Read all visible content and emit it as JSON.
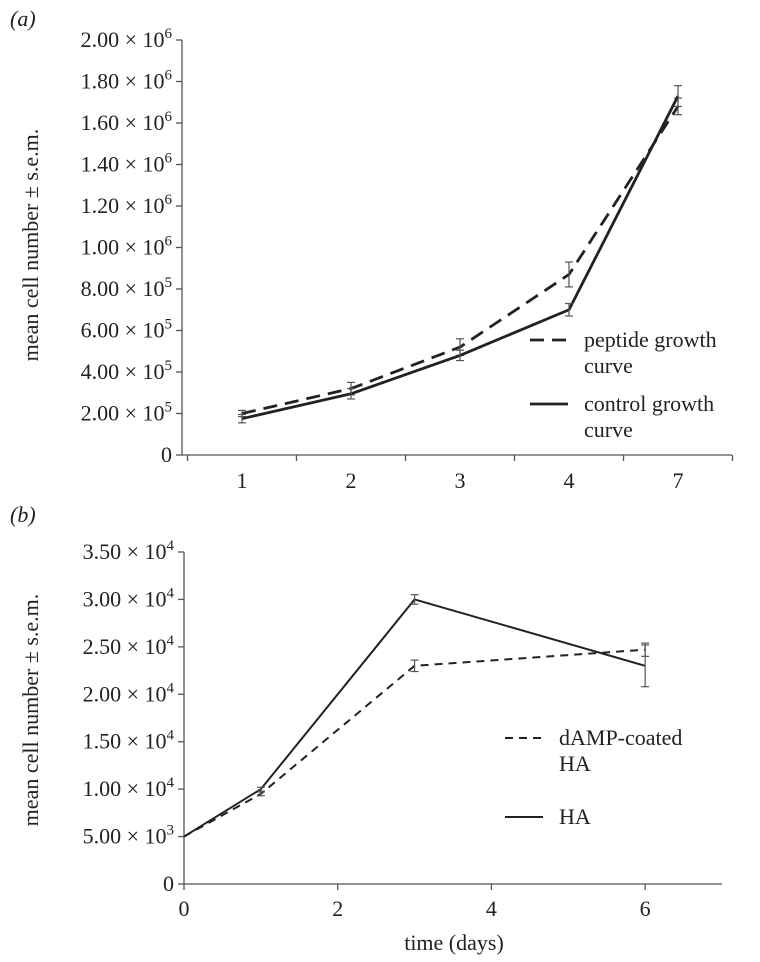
{
  "chart_data": [
    {
      "panel_label": "(a)",
      "type": "line",
      "ylabel": "mean cell number ± s.e.m.",
      "xlabel": "",
      "categories": [
        "1",
        "2",
        "3",
        "4",
        "7"
      ],
      "x_axis_type": "categorical",
      "ylim": [
        0,
        2000000
      ],
      "y_ticks": [
        0,
        200000,
        400000,
        600000,
        800000,
        1000000,
        1200000,
        1400000,
        1600000,
        1800000,
        2000000
      ],
      "y_tick_labels": [
        {
          "mantissa": "0",
          "exp": ""
        },
        {
          "mantissa": "2.00 × 10",
          "exp": "5"
        },
        {
          "mantissa": "4.00 × 10",
          "exp": "5"
        },
        {
          "mantissa": "6.00 × 10",
          "exp": "5"
        },
        {
          "mantissa": "8.00 × 10",
          "exp": "5"
        },
        {
          "mantissa": "1.00 × 10",
          "exp": "6"
        },
        {
          "mantissa": "1.20 × 10",
          "exp": "6"
        },
        {
          "mantissa": "1.40 × 10",
          "exp": "6"
        },
        {
          "mantissa": "1.60 × 10",
          "exp": "6"
        },
        {
          "mantissa": "1.80 × 10",
          "exp": "6"
        },
        {
          "mantissa": "2.00 × 10",
          "exp": "6"
        }
      ],
      "grid": false,
      "legend_position": "right",
      "series": [
        {
          "name": "peptide growth curve",
          "legend_lines": [
            "peptide growth",
            "curve"
          ],
          "style": "dashed",
          "values": [
            200000,
            320000,
            520000,
            870000,
            1680000
          ],
          "errors": [
            15000,
            30000,
            40000,
            60000,
            40000
          ]
        },
        {
          "name": "control growth curve",
          "legend_lines": [
            "control growth",
            "curve"
          ],
          "style": "solid",
          "values": [
            175000,
            295000,
            480000,
            700000,
            1730000
          ],
          "errors": [
            20000,
            25000,
            25000,
            30000,
            50000
          ]
        }
      ]
    },
    {
      "panel_label": "(b)",
      "type": "line",
      "ylabel": "mean cell number ± s.e.m.",
      "xlabel": "time (days)",
      "x_axis_type": "numeric",
      "xlim": [
        0,
        7
      ],
      "x_ticks": [
        0,
        2,
        4,
        6
      ],
      "ylim": [
        0,
        35000
      ],
      "y_ticks": [
        0,
        5000,
        10000,
        15000,
        20000,
        25000,
        30000,
        35000
      ],
      "y_tick_labels": [
        {
          "mantissa": "0",
          "exp": ""
        },
        {
          "mantissa": "5.00 × 10",
          "exp": "3"
        },
        {
          "mantissa": "1.00 × 10",
          "exp": "4"
        },
        {
          "mantissa": "1.50 × 10",
          "exp": "4"
        },
        {
          "mantissa": "2.00 × 10",
          "exp": "4"
        },
        {
          "mantissa": "2.50 × 10",
          "exp": "4"
        },
        {
          "mantissa": "3.00 × 10",
          "exp": "4"
        },
        {
          "mantissa": "3.50 × 10",
          "exp": "4"
        }
      ],
      "grid": false,
      "legend_position": "right",
      "series": [
        {
          "name": "dAMP-coated HA",
          "legend_lines": [
            "dAMP-coated",
            "HA"
          ],
          "style": "dashed",
          "x": [
            0,
            1,
            3,
            6
          ],
          "values": [
            5000,
            9500,
            23000,
            24700
          ],
          "errors": [
            0,
            200,
            600,
            700
          ]
        },
        {
          "name": "HA",
          "legend_lines": [
            "HA"
          ],
          "style": "solid",
          "x": [
            0,
            1,
            3,
            6
          ],
          "values": [
            5000,
            10000,
            30000,
            23000
          ],
          "errors": [
            0,
            200,
            500,
            2200
          ]
        }
      ]
    }
  ]
}
